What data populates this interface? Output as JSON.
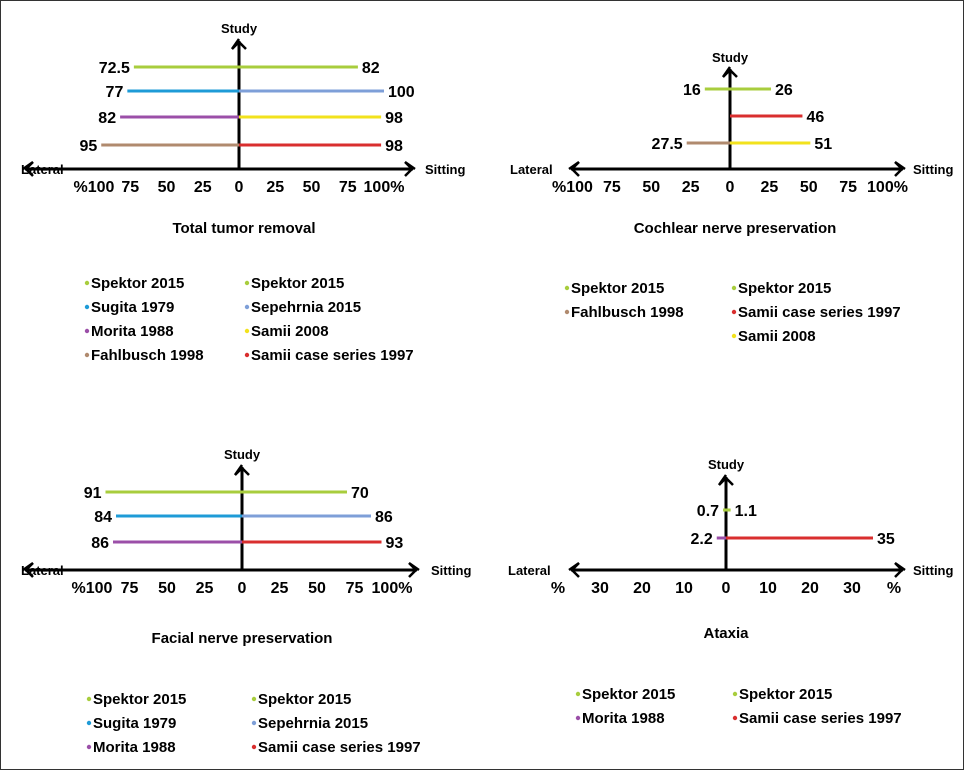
{
  "chart_data": [
    {
      "type": "bar",
      "orientation": "diverging-horizontal",
      "title": "Total tumor removal",
      "vertical_axis_label": "Study",
      "left_label": "Lateral",
      "right_label": "Sitting",
      "tick_labels": [
        "%100",
        "75",
        "50",
        "25",
        "0",
        "25",
        "50",
        "75",
        "100%"
      ],
      "xlim": [
        -100,
        100
      ],
      "rows": [
        {
          "left": {
            "value": 72.5,
            "label": "72.5",
            "series": "Spektor 2015 (lateral)"
          },
          "right": {
            "value": 82,
            "label": "82",
            "series": "Spektor 2015 (sitting)"
          }
        },
        {
          "left": {
            "value": 77,
            "label": "77",
            "series": "Sugita 1979"
          },
          "right": {
            "value": 100,
            "label": "100",
            "series": "Sepehrnia 2015"
          }
        },
        {
          "left": {
            "value": 82,
            "label": "82",
            "series": "Morita 1988"
          },
          "right": {
            "value": 98,
            "label": "98",
            "series": "Samii 2008"
          }
        },
        {
          "left": {
            "value": 95,
            "label": "95",
            "series": "Fahlbusch 1998"
          },
          "right": {
            "value": 98,
            "label": "98",
            "series": "Samii case series 1997"
          }
        }
      ],
      "legend_left": [
        {
          "label": "Spektor 2015",
          "color": "#a8cd3d"
        },
        {
          "label": "Sugita 1979",
          "color": "#1e9bd7"
        },
        {
          "label": "Morita 1988",
          "color": "#9b4fa8"
        },
        {
          "label": "Fahlbusch 1998",
          "color": "#b08a6e"
        }
      ],
      "legend_right": [
        {
          "label": "Spektor 2015",
          "color": "#a8cd3d"
        },
        {
          "label": "Sepehrnia 2015",
          "color": "#7e9fd8"
        },
        {
          "label": "Samii 2008",
          "color": "#f2e21c"
        },
        {
          "label": "Samii case series 1997",
          "color": "#d92e2e"
        }
      ]
    },
    {
      "type": "bar",
      "orientation": "diverging-horizontal",
      "title": "Cochlear nerve preservation",
      "vertical_axis_label": "Study",
      "left_label": "Lateral",
      "right_label": "Sitting",
      "tick_labels": [
        "%100",
        "75",
        "50",
        "25",
        "0",
        "25",
        "50",
        "75",
        "100%"
      ],
      "xlim": [
        -100,
        100
      ],
      "rows": [
        {
          "left": {
            "value": 16,
            "label": "16",
            "series": "Spektor 2015 (lateral)"
          },
          "right": {
            "value": 26,
            "label": "26",
            "series": "Spektor 2015 (sitting)"
          }
        },
        {
          "left": null,
          "right": {
            "value": 46,
            "label": "46",
            "series": "Samii case series 1997"
          }
        },
        {
          "left": {
            "value": 27.5,
            "label": "27.5",
            "series": "Fahlbusch 1998"
          },
          "right": {
            "value": 51,
            "label": "51",
            "series": "Samii 2008"
          }
        }
      ],
      "legend_left": [
        {
          "label": "Spektor 2015",
          "color": "#a8cd3d"
        },
        {
          "label": "Fahlbusch 1998",
          "color": "#b08a6e"
        }
      ],
      "legend_right": [
        {
          "label": "Spektor 2015",
          "color": "#a8cd3d"
        },
        {
          "label": "Samii case series 1997",
          "color": "#d92e2e"
        },
        {
          "label": "Samii 2008",
          "color": "#f2e21c"
        }
      ]
    },
    {
      "type": "bar",
      "orientation": "diverging-horizontal",
      "title": "Facial nerve preservation",
      "vertical_axis_label": "Study",
      "left_label": "Lateral",
      "right_label": "Sitting",
      "tick_labels": [
        "%100",
        "75",
        "50",
        "25",
        "0",
        "25",
        "50",
        "75",
        "100%"
      ],
      "xlim": [
        -100,
        100
      ],
      "rows": [
        {
          "left": {
            "value": 91,
            "label": "91",
            "series": "Spektor 2015 (lateral)"
          },
          "right": {
            "value": 70,
            "label": "70",
            "series": "Spektor 2015 (sitting)"
          }
        },
        {
          "left": {
            "value": 84,
            "label": "84",
            "series": "Sugita 1979"
          },
          "right": {
            "value": 86,
            "label": "86",
            "series": "Sepehrnia 2015"
          }
        },
        {
          "left": {
            "value": 86,
            "label": "86",
            "series": "Morita 1988"
          },
          "right": {
            "value": 93,
            "label": "93",
            "series": "Samii case series 1997"
          }
        }
      ],
      "legend_left": [
        {
          "label": "Spektor 2015",
          "color": "#a8cd3d"
        },
        {
          "label": "Sugita 1979",
          "color": "#1e9bd7"
        },
        {
          "label": "Morita 1988",
          "color": "#9b4fa8"
        }
      ],
      "legend_right": [
        {
          "label": "Spektor 2015",
          "color": "#a8cd3d"
        },
        {
          "label": "Sepehrnia 2015",
          "color": "#7e9fd8"
        },
        {
          "label": "Samii case series 1997",
          "color": "#d92e2e"
        }
      ]
    },
    {
      "type": "bar",
      "orientation": "diverging-horizontal",
      "title": "Ataxia",
      "vertical_axis_label": "Study",
      "left_label": "Lateral",
      "right_label": "Sitting",
      "tick_labels": [
        "%",
        "30",
        "20",
        "10",
        "0",
        "10",
        "20",
        "30",
        "%"
      ],
      "xlim": [
        -40,
        40
      ],
      "rows": [
        {
          "left": {
            "value": 0.7,
            "label": "0.7",
            "series": "Spektor 2015 (lateral)"
          },
          "right": {
            "value": 1.1,
            "label": "1.1",
            "series": "Spektor 2015 (sitting)"
          }
        },
        {
          "left": {
            "value": 2.2,
            "label": "2.2",
            "series": "Morita 1988"
          },
          "right": {
            "value": 35,
            "label": "35",
            "series": "Samii case series 1997"
          }
        }
      ],
      "legend_left": [
        {
          "label": "Spektor 2015",
          "color": "#a8cd3d"
        },
        {
          "label": "Morita 1988",
          "color": "#9b4fa8"
        }
      ],
      "legend_right": [
        {
          "label": "Spektor 2015",
          "color": "#a8cd3d"
        },
        {
          "label": "Samii case series 1997",
          "color": "#d92e2e"
        }
      ]
    }
  ]
}
